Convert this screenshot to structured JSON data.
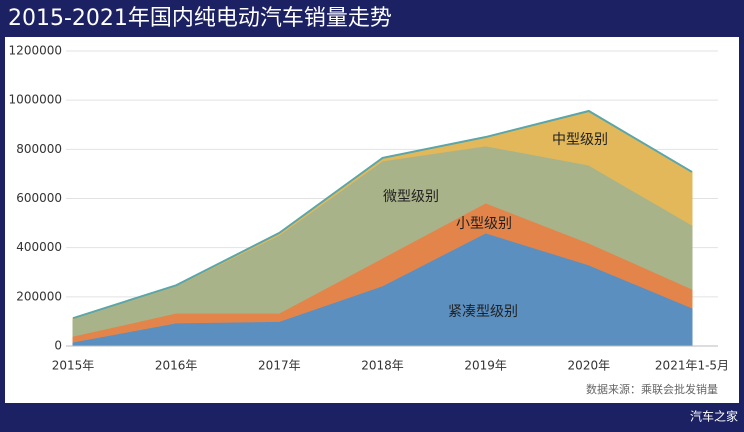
{
  "chart_data": {
    "type": "stacked-area",
    "title": "2015-2021年国内纯电动汽车销量走势",
    "categories": [
      "2015年",
      "2016年",
      "2017年",
      "2018年",
      "2019年",
      "2020年",
      "2021年1-5月"
    ],
    "series": [
      {
        "name": "紧凑型级别",
        "color": "#5b8fc0",
        "values": [
          16000,
          94000,
          100000,
          245000,
          460000,
          330000,
          155000
        ]
      },
      {
        "name": "小型级别",
        "color": "#e3854a",
        "values": [
          24000,
          40000,
          34000,
          113000,
          122000,
          89000,
          77000
        ]
      },
      {
        "name": "微型级别",
        "color": "#a9b38a",
        "values": [
          70000,
          110000,
          318000,
          395000,
          232000,
          317000,
          260000
        ]
      },
      {
        "name": "中型级别",
        "color": "#e3b85a",
        "values": [
          3000,
          3000,
          8000,
          12000,
          36000,
          220000,
          216000
        ]
      }
    ],
    "ylim": [
      0,
      1200000
    ],
    "yticks": [
      0,
      200000,
      400000,
      600000,
      800000,
      1000000,
      1200000
    ],
    "grid": true,
    "source": "数据来源：乘联会批发销量"
  },
  "footer": {
    "brand": "汽车之家"
  }
}
